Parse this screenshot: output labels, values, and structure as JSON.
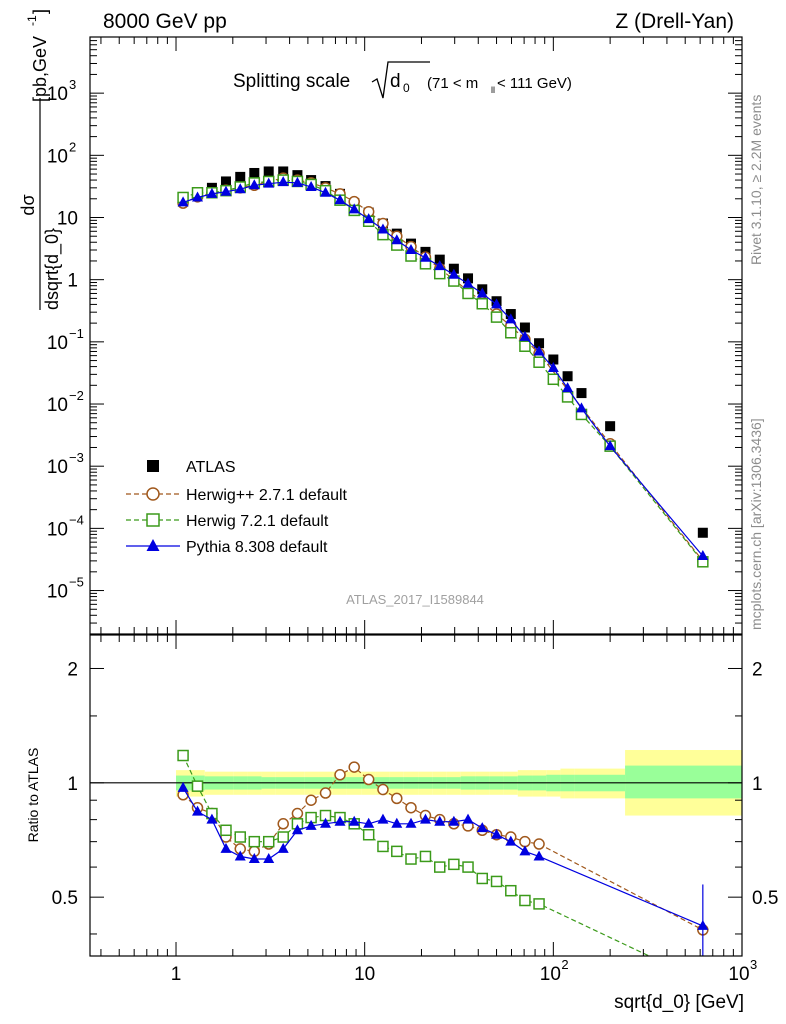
{
  "header": {
    "energy_label": "8000 GeV pp",
    "process_label": "Z (Drell-Yan)"
  },
  "side_labels": {
    "rivet": "Rivet 3.1.10, ≥ 2.2M events",
    "mcplots": "mcplots.cern.ch [arXiv:1306.3436]"
  },
  "chart_data": [
    {
      "type": "scatter",
      "panel": "main",
      "title": "Splitting scale",
      "title_sqrt_symbol": "d",
      "title_sqrt_subscript": "0",
      "title_range": "(71 < m",
      "title_range_sub": "ll",
      "title_range_end": " < 111 GeV)",
      "ylabel_num": "dσ",
      "ylabel_den": "dsqrt{d_0}",
      "ylabel_units": "[pb,GeV",
      "ylabel_units_sup": "-1",
      "ylabel_units_end": "]",
      "y_scale": "log",
      "ylim": [
        2e-06,
        8000
      ],
      "xlim": [
        0.35,
        1000
      ],
      "x_scale": "log",
      "yticks": [
        {
          "value": 1e-05,
          "label": "10",
          "sup": "−5"
        },
        {
          "value": 0.0001,
          "label": "10",
          "sup": "−4"
        },
        {
          "value": 0.001,
          "label": "10",
          "sup": "−3"
        },
        {
          "value": 0.01,
          "label": "10",
          "sup": "−2"
        },
        {
          "value": 0.1,
          "label": "10",
          "sup": "−1"
        },
        {
          "value": 1,
          "label": "1",
          "sup": ""
        },
        {
          "value": 10,
          "label": "10",
          "sup": ""
        },
        {
          "value": 100,
          "label": "10",
          "sup": "2"
        },
        {
          "value": 1000,
          "label": "10",
          "sup": "3"
        }
      ],
      "watermark": "ATLAS_2017_I1589844",
      "legend_position": "bottom-left",
      "series": [
        {
          "name": "ATLAS",
          "marker": "filled-square",
          "color": "#000000",
          "x": [
            1.09,
            1.3,
            1.55,
            1.84,
            2.19,
            2.6,
            3.1,
            3.7,
            4.4,
            5.2,
            6.2,
            7.4,
            8.8,
            10.5,
            12.5,
            14.8,
            17.6,
            21,
            25,
            29.7,
            35.3,
            42,
            50,
            59.5,
            70.7,
            84,
            100,
            119,
            141,
            200,
            620
          ],
          "y": [
            18,
            25,
            30,
            38,
            45,
            52,
            55,
            55,
            48,
            40,
            32,
            24,
            17,
            12,
            8,
            5.5,
            3.8,
            2.8,
            2.1,
            1.5,
            1.05,
            0.7,
            0.45,
            0.28,
            0.17,
            0.095,
            0.052,
            0.028,
            0.015,
            0.0044,
            8.5e-05
          ]
        },
        {
          "name": "Herwig++ 2.7.1 default",
          "marker": "open-circle",
          "line": "dashed",
          "color": "#a0581c",
          "x": [
            1.09,
            1.3,
            1.55,
            1.84,
            2.19,
            2.6,
            3.1,
            3.7,
            4.4,
            5.2,
            6.2,
            7.4,
            8.8,
            10.5,
            12.5,
            14.8,
            17.6,
            21,
            25,
            29.7,
            35.3,
            42,
            50,
            59.5,
            70.7,
            84,
            200,
            620
          ],
          "y": [
            17,
            21.5,
            25,
            27.5,
            30,
            33,
            38,
            43,
            40,
            36,
            30,
            24,
            18,
            12.4,
            8,
            5,
            3.4,
            2.3,
            1.5,
            1.0,
            0.66,
            0.44,
            0.28,
            0.18,
            0.11,
            0.065,
            0.0023,
            3e-05
          ]
        },
        {
          "name": "Herwig 7.2.1 default",
          "marker": "open-square",
          "line": "dashed",
          "color": "#3b9a1a",
          "x": [
            1.09,
            1.3,
            1.55,
            1.84,
            2.19,
            2.6,
            3.1,
            3.7,
            4.4,
            5.2,
            6.2,
            7.4,
            8.8,
            10.5,
            12.5,
            14.8,
            17.6,
            21,
            25,
            29.7,
            35.3,
            42,
            50,
            59.5,
            70.7,
            84,
            100,
            119,
            141,
            200,
            620
          ],
          "y": [
            21,
            25,
            25,
            27,
            31,
            36,
            38,
            40,
            38,
            34,
            27,
            19,
            13,
            8.7,
            5.3,
            3.6,
            2.4,
            1.8,
            1.25,
            0.95,
            0.6,
            0.41,
            0.25,
            0.14,
            0.085,
            0.047,
            0.025,
            0.013,
            0.0068,
            0.0021,
            2.9e-05
          ]
        },
        {
          "name": "Pythia 8.308 default",
          "marker": "filled-triangle",
          "line": "solid",
          "color": "#0000e0",
          "x": [
            1.09,
            1.3,
            1.55,
            1.84,
            2.19,
            2.6,
            3.1,
            3.7,
            4.4,
            5.2,
            6.2,
            7.4,
            8.8,
            10.5,
            12.5,
            14.8,
            17.6,
            21,
            25,
            29.7,
            35.3,
            42,
            50,
            59.5,
            70.7,
            84,
            100,
            119,
            141,
            200,
            620
          ],
          "y": [
            17.5,
            21,
            24,
            26,
            28.5,
            33,
            35,
            37,
            36,
            31,
            25,
            19,
            13.5,
            9.4,
            6.4,
            4.3,
            3.0,
            2.25,
            1.65,
            1.2,
            0.86,
            0.6,
            0.4,
            0.23,
            0.12,
            0.07,
            0.038,
            0.018,
            0.0085,
            0.0021,
            3.6e-05
          ]
        }
      ]
    },
    {
      "type": "line",
      "panel": "ratio",
      "ylabel": "Ratio to ATLAS",
      "xlabel": "sqrt{d_0} [GeV]",
      "x_scale": "log",
      "xlim": [
        0.35,
        1000
      ],
      "ylim": [
        0.35,
        2.45
      ],
      "y_scale": "log",
      "yticks": [
        {
          "value": 0.5,
          "label": "0.5"
        },
        {
          "value": 1,
          "label": "1"
        },
        {
          "value": 2,
          "label": "2"
        }
      ],
      "xticks": [
        {
          "value": 1,
          "label": "1",
          "sup": ""
        },
        {
          "value": 10,
          "label": "10",
          "sup": ""
        },
        {
          "value": 100,
          "label": "10",
          "sup": "2"
        },
        {
          "value": 1000,
          "label": "10",
          "sup": "3"
        }
      ],
      "reference_line": 1,
      "bands": {
        "edges": [
          1,
          1.19,
          1.42,
          1.69,
          2.01,
          2.39,
          2.84,
          3.38,
          4.02,
          4.78,
          5.69,
          6.77,
          8.05,
          9.58,
          11.4,
          13.6,
          16.1,
          19.2,
          22.8,
          27.2,
          32.3,
          38.5,
          45.8,
          54.5,
          64.8,
          77.1,
          91.7,
          109,
          130,
          240,
          1000
        ],
        "yellow": [
          [
            0.92,
            1.08
          ],
          [
            0.92,
            1.08
          ],
          [
            0.93,
            1.07
          ],
          [
            0.93,
            1.07
          ],
          [
            0.93,
            1.07
          ],
          [
            0.93,
            1.07
          ],
          [
            0.93,
            1.07
          ],
          [
            0.93,
            1.07
          ],
          [
            0.93,
            1.07
          ],
          [
            0.93,
            1.07
          ],
          [
            0.93,
            1.07
          ],
          [
            0.93,
            1.07
          ],
          [
            0.93,
            1.07
          ],
          [
            0.93,
            1.07
          ],
          [
            0.93,
            1.07
          ],
          [
            0.93,
            1.07
          ],
          [
            0.93,
            1.07
          ],
          [
            0.93,
            1.07
          ],
          [
            0.93,
            1.07
          ],
          [
            0.93,
            1.07
          ],
          [
            0.93,
            1.07
          ],
          [
            0.93,
            1.07
          ],
          [
            0.93,
            1.07
          ],
          [
            0.93,
            1.07
          ],
          [
            0.92,
            1.08
          ],
          [
            0.92,
            1.08
          ],
          [
            0.92,
            1.08
          ],
          [
            0.91,
            1.09
          ],
          [
            0.91,
            1.09
          ],
          [
            0.82,
            1.22
          ]
        ],
        "green": [
          [
            0.955,
            1.045
          ],
          [
            0.955,
            1.045
          ],
          [
            0.96,
            1.04
          ],
          [
            0.96,
            1.04
          ],
          [
            0.96,
            1.04
          ],
          [
            0.96,
            1.04
          ],
          [
            0.965,
            1.035
          ],
          [
            0.965,
            1.035
          ],
          [
            0.965,
            1.035
          ],
          [
            0.965,
            1.035
          ],
          [
            0.965,
            1.035
          ],
          [
            0.965,
            1.035
          ],
          [
            0.965,
            1.035
          ],
          [
            0.965,
            1.035
          ],
          [
            0.965,
            1.035
          ],
          [
            0.965,
            1.035
          ],
          [
            0.965,
            1.035
          ],
          [
            0.965,
            1.035
          ],
          [
            0.965,
            1.035
          ],
          [
            0.965,
            1.035
          ],
          [
            0.96,
            1.04
          ],
          [
            0.96,
            1.04
          ],
          [
            0.96,
            1.04
          ],
          [
            0.96,
            1.04
          ],
          [
            0.955,
            1.045
          ],
          [
            0.955,
            1.045
          ],
          [
            0.95,
            1.05
          ],
          [
            0.95,
            1.05
          ],
          [
            0.95,
            1.05
          ],
          [
            0.91,
            1.11
          ]
        ]
      },
      "series": [
        {
          "name": "Herwig++ 2.7.1 default",
          "marker": "open-circle",
          "line": "dashed",
          "color": "#a0581c",
          "x": [
            1.09,
            1.3,
            1.55,
            1.84,
            2.19,
            2.6,
            3.1,
            3.7,
            4.4,
            5.2,
            6.2,
            7.4,
            8.8,
            10.5,
            12.5,
            14.8,
            17.6,
            21,
            25,
            29.7,
            35.3,
            42,
            50,
            59.5,
            70.7,
            84,
            620
          ],
          "y": [
            0.93,
            0.86,
            0.83,
            0.72,
            0.67,
            0.66,
            0.69,
            0.78,
            0.83,
            0.9,
            0.94,
            1.05,
            1.1,
            1.02,
            0.96,
            0.91,
            0.86,
            0.82,
            0.8,
            0.78,
            0.77,
            0.75,
            0.73,
            0.72,
            0.7,
            0.69,
            0.41
          ]
        },
        {
          "name": "Herwig 7.2.1 default",
          "marker": "open-square",
          "line": "dashed",
          "color": "#3b9a1a",
          "x": [
            1.09,
            1.3,
            1.55,
            1.84,
            2.19,
            2.6,
            3.1,
            3.7,
            4.4,
            5.2,
            6.2,
            7.4,
            8.8,
            10.5,
            12.5,
            14.8,
            17.6,
            21,
            25,
            29.7,
            35.3,
            42,
            50,
            59.5,
            70.7,
            84,
            620
          ],
          "y": [
            1.18,
            0.98,
            0.83,
            0.75,
            0.72,
            0.7,
            0.7,
            0.72,
            0.78,
            0.81,
            0.82,
            0.81,
            0.78,
            0.73,
            0.68,
            0.66,
            0.63,
            0.64,
            0.6,
            0.61,
            0.6,
            0.56,
            0.55,
            0.52,
            0.49,
            0.48,
            0.3
          ]
        },
        {
          "name": "Pythia 8.308 default",
          "marker": "filled-triangle",
          "line": "solid",
          "color": "#0000e0",
          "x": [
            1.09,
            1.3,
            1.55,
            1.84,
            2.19,
            2.6,
            3.1,
            3.7,
            4.4,
            5.2,
            6.2,
            7.4,
            8.8,
            10.5,
            12.5,
            14.8,
            17.6,
            21,
            25,
            29.7,
            35.3,
            42,
            50,
            59.5,
            70.7,
            84,
            620
          ],
          "y": [
            0.97,
            0.84,
            0.8,
            0.67,
            0.64,
            0.63,
            0.63,
            0.67,
            0.75,
            0.77,
            0.78,
            0.79,
            0.79,
            0.78,
            0.8,
            0.78,
            0.78,
            0.8,
            0.79,
            0.79,
            0.8,
            0.76,
            0.73,
            0.7,
            0.66,
            0.64,
            0.42
          ],
          "errors": [
            0,
            0,
            0,
            0,
            0,
            0,
            0,
            0,
            0,
            0,
            0,
            0,
            0,
            0,
            0,
            0,
            0,
            0,
            0,
            0,
            0,
            0,
            0,
            0,
            0,
            0,
            0.12
          ]
        }
      ]
    }
  ]
}
